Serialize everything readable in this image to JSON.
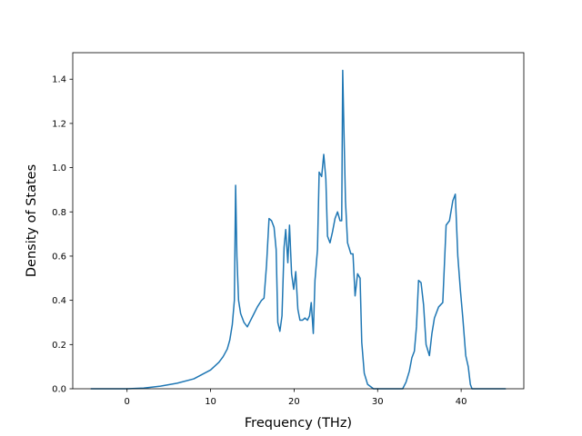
{
  "chart_data": {
    "type": "line",
    "title": "",
    "xlabel": "Frequency (THz)",
    "ylabel": "Density of States",
    "xlim": [
      -6.5,
      47.5
    ],
    "ylim": [
      0.0,
      1.52
    ],
    "xticks": [
      0,
      10,
      20,
      30,
      40
    ],
    "yticks": [
      0.0,
      0.2,
      0.4,
      0.6,
      0.8,
      1.0,
      1.2,
      1.4
    ],
    "xtick_labels": [
      "0",
      "10",
      "20",
      "30",
      "40"
    ],
    "ytick_labels": [
      "0.0",
      "0.2",
      "0.4",
      "0.6",
      "0.8",
      "1.0",
      "1.2",
      "1.4"
    ],
    "grid": false,
    "legend": false,
    "line_color": "#1f77b4",
    "series": [
      {
        "x": [
          -4.3,
          0,
          2,
          4,
          6,
          8,
          10,
          11,
          11.5,
          12,
          12.3,
          12.6,
          12.85,
          13.0,
          13.15,
          13.35,
          13.6,
          14.0,
          14.4,
          14.8,
          15.2,
          15.6,
          16.1,
          16.4,
          16.7,
          17.0,
          17.3,
          17.6,
          17.85,
          18.05,
          18.3,
          18.55,
          18.8,
          19.0,
          19.25,
          19.45,
          19.7,
          19.95,
          20.2,
          20.45,
          20.7,
          21.0,
          21.3,
          21.6,
          21.85,
          22.05,
          22.3,
          22.5,
          22.8,
          23.0,
          23.3,
          23.55,
          23.8,
          24.0,
          24.3,
          24.6,
          24.9,
          25.2,
          25.5,
          25.7,
          25.82,
          25.95,
          26.15,
          26.4,
          26.8,
          27.05,
          27.3,
          27.6,
          27.9,
          28.1,
          28.4,
          28.8,
          29.5,
          31.0,
          33.0,
          33.4,
          33.8,
          34.1,
          34.4,
          34.65,
          34.9,
          35.2,
          35.5,
          35.8,
          36.2,
          36.5,
          36.8,
          37.3,
          37.8,
          38.2,
          38.6,
          39.0,
          39.3,
          39.6,
          39.9,
          40.2,
          40.55,
          40.85,
          41.1,
          41.3,
          41.6,
          42.5,
          45.3
        ],
        "y": [
          0.0,
          0.0,
          0.003,
          0.012,
          0.025,
          0.045,
          0.085,
          0.12,
          0.145,
          0.18,
          0.22,
          0.29,
          0.4,
          0.92,
          0.6,
          0.4,
          0.34,
          0.3,
          0.28,
          0.31,
          0.34,
          0.37,
          0.4,
          0.41,
          0.56,
          0.77,
          0.76,
          0.73,
          0.63,
          0.3,
          0.26,
          0.33,
          0.64,
          0.72,
          0.57,
          0.74,
          0.52,
          0.45,
          0.53,
          0.36,
          0.31,
          0.31,
          0.32,
          0.31,
          0.33,
          0.39,
          0.25,
          0.49,
          0.63,
          0.98,
          0.96,
          1.06,
          0.95,
          0.69,
          0.66,
          0.71,
          0.77,
          0.8,
          0.76,
          0.76,
          1.44,
          1.2,
          0.85,
          0.66,
          0.61,
          0.61,
          0.42,
          0.52,
          0.5,
          0.21,
          0.07,
          0.02,
          0.0,
          0.0,
          0.0,
          0.03,
          0.08,
          0.14,
          0.17,
          0.28,
          0.49,
          0.48,
          0.38,
          0.2,
          0.15,
          0.25,
          0.32,
          0.37,
          0.39,
          0.74,
          0.76,
          0.85,
          0.88,
          0.6,
          0.45,
          0.32,
          0.15,
          0.1,
          0.02,
          0.0,
          0.0,
          0.0,
          0.0
        ]
      }
    ]
  }
}
